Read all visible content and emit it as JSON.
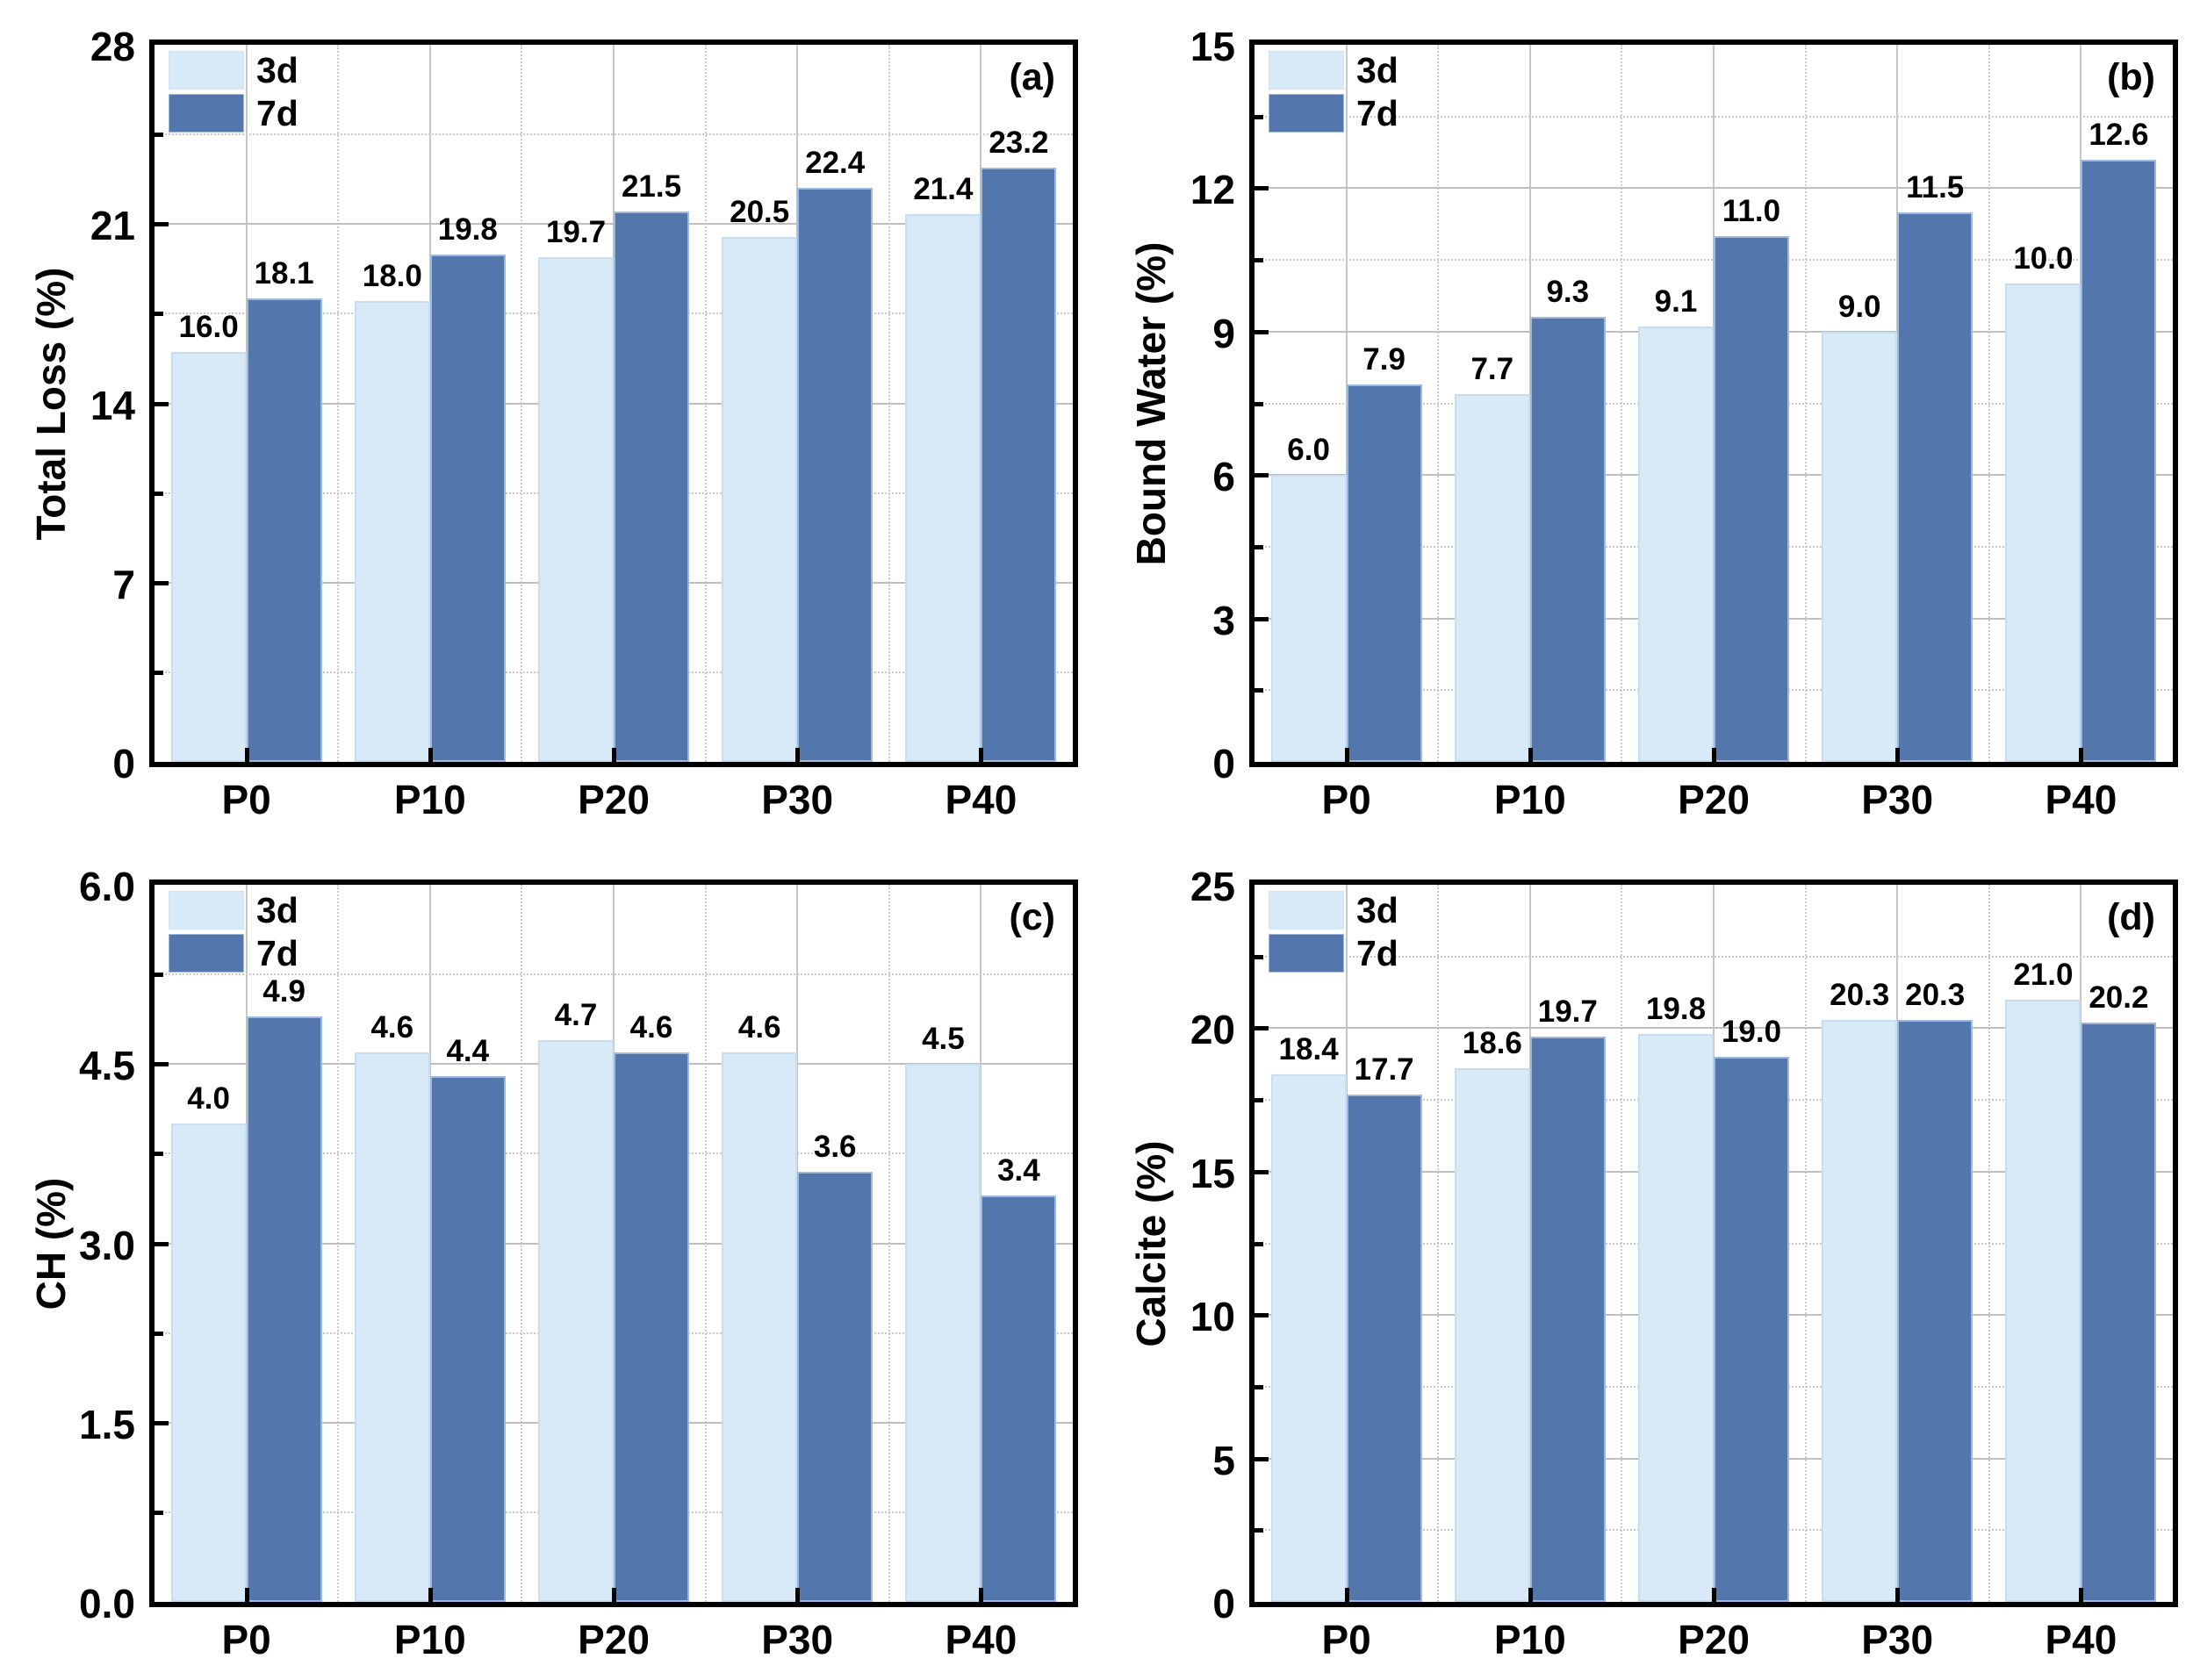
{
  "figure": {
    "background": "#ffffff",
    "rows": 2,
    "cols": 2,
    "categories": [
      "P0",
      "P10",
      "P20",
      "P30",
      "P40"
    ],
    "legend": {
      "items": [
        {
          "label": "3d",
          "color": "#d8eaf8"
        },
        {
          "label": "7d",
          "color": "#5377ad"
        }
      ]
    },
    "colors": {
      "series_3d_fill": "#d8eaf8",
      "series_3d_edge": "#c6def2",
      "series_7d_fill": "#5377ad",
      "series_7d_edge": "#9db9dc",
      "grid_major": "#bfbfbf",
      "grid_minor": "#c9c9c9",
      "axis": "#000000",
      "text": "#000000"
    }
  },
  "chart_data": [
    {
      "type": "bar",
      "panel_label": "(a)",
      "ylabel": "Total Loss (%)",
      "ylim": [
        0,
        28
      ],
      "ytick_step": 7,
      "yminor_step": 3.5,
      "ytick_decimals": 0,
      "grid": "horizontal major solid + minor dotted, vertical major solid + minor dotted",
      "legend_position": "top-left",
      "categories": [
        "P0",
        "P10",
        "P20",
        "P30",
        "P40"
      ],
      "series": [
        {
          "name": "3d",
          "values": [
            16.0,
            18.0,
            19.7,
            20.5,
            21.4
          ]
        },
        {
          "name": "7d",
          "values": [
            18.1,
            19.8,
            21.5,
            22.4,
            23.2
          ]
        }
      ],
      "bar_value_labels": {
        "3d": [
          "16.0",
          "18.0",
          "19.7",
          "20.5",
          "21.4"
        ],
        "7d": [
          "18.1",
          "19.8",
          "21.5",
          "22.4",
          "23.2"
        ]
      }
    },
    {
      "type": "bar",
      "panel_label": "(b)",
      "ylabel": "Bound Water (%)",
      "ylim": [
        0,
        15
      ],
      "ytick_step": 3,
      "yminor_step": 1.5,
      "ytick_decimals": 0,
      "grid": "horizontal major solid + minor dotted, vertical major solid + minor dotted",
      "legend_position": "top-left",
      "categories": [
        "P0",
        "P10",
        "P20",
        "P30",
        "P40"
      ],
      "series": [
        {
          "name": "3d",
          "values": [
            6.0,
            7.7,
            9.1,
            9.0,
            10.0
          ]
        },
        {
          "name": "7d",
          "values": [
            7.9,
            9.3,
            11.0,
            11.5,
            12.6
          ]
        }
      ],
      "bar_value_labels": {
        "3d": [
          "6.0",
          "7.7",
          "9.1",
          "9.0",
          "10.0"
        ],
        "7d": [
          "7.9",
          "9.3",
          "11.0",
          "11.5",
          "12.6"
        ]
      }
    },
    {
      "type": "bar",
      "panel_label": "(c)",
      "ylabel": "CH (%)",
      "ylim": [
        0,
        6
      ],
      "ytick_step": 1.5,
      "yminor_step": 0.75,
      "ytick_decimals": 1,
      "grid": "horizontal major solid + minor dotted, vertical major solid + minor dotted",
      "legend_position": "top-left",
      "categories": [
        "P0",
        "P10",
        "P20",
        "P30",
        "P40"
      ],
      "series": [
        {
          "name": "3d",
          "values": [
            4.0,
            4.6,
            4.7,
            4.6,
            4.5
          ]
        },
        {
          "name": "7d",
          "values": [
            4.9,
            4.4,
            4.6,
            3.6,
            3.4
          ]
        }
      ],
      "bar_value_labels": {
        "3d": [
          "4.0",
          "4.6",
          "4.7",
          "4.6",
          "4.5"
        ],
        "7d": [
          "4.9",
          "4.4",
          "4.6",
          "3.6",
          "3.4"
        ]
      }
    },
    {
      "type": "bar",
      "panel_label": "(d)",
      "ylabel": "Calcite (%)",
      "ylim": [
        0,
        25
      ],
      "ytick_step": 5,
      "yminor_step": 2.5,
      "ytick_decimals": 0,
      "grid": "horizontal major solid + minor dotted, vertical major solid + minor dotted",
      "legend_position": "top-left",
      "categories": [
        "P0",
        "P10",
        "P20",
        "P30",
        "P40"
      ],
      "series": [
        {
          "name": "3d",
          "values": [
            18.4,
            18.6,
            19.8,
            20.3,
            21.0
          ]
        },
        {
          "name": "7d",
          "values": [
            17.7,
            19.7,
            19.0,
            20.3,
            20.2
          ]
        }
      ],
      "bar_value_labels": {
        "3d": [
          "18.4",
          "18.6",
          "19.8",
          "20.3",
          "21.0"
        ],
        "7d": [
          "17.7",
          "19.7",
          "19.0",
          "20.3",
          "20.2"
        ]
      }
    }
  ]
}
